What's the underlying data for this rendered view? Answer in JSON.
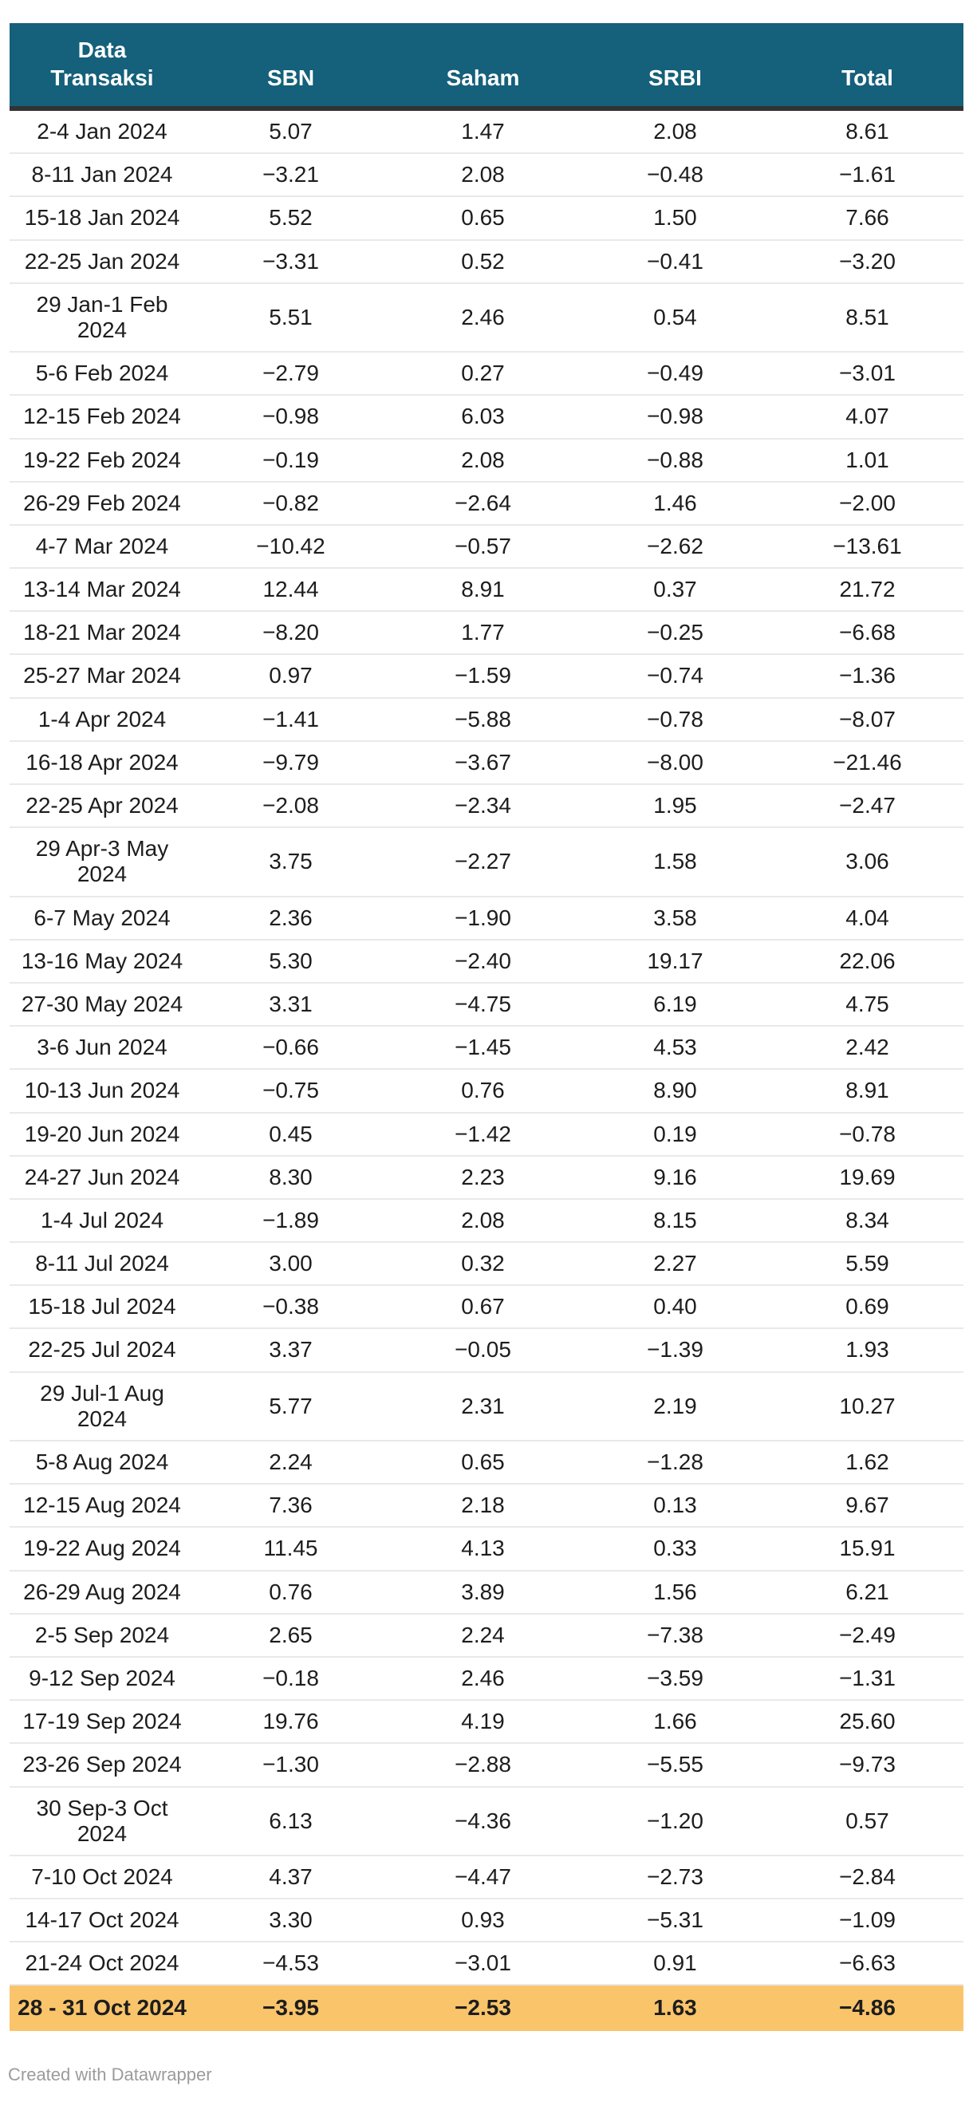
{
  "theme": {
    "header_bg": "#15607A",
    "header_text": "#FFFFFF",
    "header_border": "#333333",
    "row_divider": "#E9E9E9",
    "cell_text": "#1D1D1D",
    "highlight_bg": "#FAC46B",
    "page_bg": "#FFFFFF",
    "credit_text": "#9B9B9B"
  },
  "header": {
    "labels": [
      "Data\nTransaksi",
      "SBN",
      "Saham",
      "SRBI",
      "Total"
    ]
  },
  "footer": {
    "credit": "Created with Datawrapper"
  },
  "chart_data": {
    "type": "table",
    "columns": [
      "Data Transaksi",
      "SBN",
      "Saham",
      "SRBI",
      "Total"
    ],
    "highlight_row_index": 41,
    "rows": [
      [
        "2-4 Jan 2024",
        5.07,
        1.47,
        2.08,
        8.61
      ],
      [
        "8-11 Jan 2024",
        -3.21,
        2.08,
        -0.48,
        -1.61
      ],
      [
        "15-18 Jan 2024",
        5.52,
        0.65,
        1.5,
        7.66
      ],
      [
        "22-25 Jan 2024",
        -3.31,
        0.52,
        -0.41,
        -3.2
      ],
      [
        "29 Jan-1 Feb 2024",
        5.51,
        2.46,
        0.54,
        8.51
      ],
      [
        "5-6 Feb 2024",
        -2.79,
        0.27,
        -0.49,
        -3.01
      ],
      [
        "12-15 Feb 2024",
        -0.98,
        6.03,
        -0.98,
        4.07
      ],
      [
        "19-22 Feb 2024",
        -0.19,
        2.08,
        -0.88,
        1.01
      ],
      [
        "26-29 Feb 2024",
        -0.82,
        -2.64,
        1.46,
        -2.0
      ],
      [
        "4-7 Mar 2024",
        -10.42,
        -0.57,
        -2.62,
        -13.61
      ],
      [
        "13-14 Mar 2024",
        12.44,
        8.91,
        0.37,
        21.72
      ],
      [
        "18-21 Mar 2024",
        -8.2,
        1.77,
        -0.25,
        -6.68
      ],
      [
        "25-27 Mar 2024",
        0.97,
        -1.59,
        -0.74,
        -1.36
      ],
      [
        "1-4 Apr 2024",
        -1.41,
        -5.88,
        -0.78,
        -8.07
      ],
      [
        "16-18 Apr 2024",
        -9.79,
        -3.67,
        -8.0,
        -21.46
      ],
      [
        "22-25 Apr 2024",
        -2.08,
        -2.34,
        1.95,
        -2.47
      ],
      [
        "29 Apr-3 May 2024",
        3.75,
        -2.27,
        1.58,
        3.06
      ],
      [
        "6-7 May 2024",
        2.36,
        -1.9,
        3.58,
        4.04
      ],
      [
        "13-16 May 2024",
        5.3,
        -2.4,
        19.17,
        22.06
      ],
      [
        "27-30 May 2024",
        3.31,
        -4.75,
        6.19,
        4.75
      ],
      [
        "3-6 Jun 2024",
        -0.66,
        -1.45,
        4.53,
        2.42
      ],
      [
        "10-13 Jun 2024",
        -0.75,
        0.76,
        8.9,
        8.91
      ],
      [
        "19-20 Jun 2024",
        0.45,
        -1.42,
        0.19,
        -0.78
      ],
      [
        "24-27 Jun 2024",
        8.3,
        2.23,
        9.16,
        19.69
      ],
      [
        "1-4 Jul 2024",
        -1.89,
        2.08,
        8.15,
        8.34
      ],
      [
        "8-11 Jul 2024",
        3.0,
        0.32,
        2.27,
        5.59
      ],
      [
        "15-18 Jul 2024",
        -0.38,
        0.67,
        0.4,
        0.69
      ],
      [
        "22-25 Jul 2024",
        3.37,
        -0.05,
        -1.39,
        1.93
      ],
      [
        "29 Jul-1 Aug 2024",
        5.77,
        2.31,
        2.19,
        10.27
      ],
      [
        "5-8 Aug 2024",
        2.24,
        0.65,
        -1.28,
        1.62
      ],
      [
        "12-15 Aug 2024",
        7.36,
        2.18,
        0.13,
        9.67
      ],
      [
        "19-22 Aug 2024",
        11.45,
        4.13,
        0.33,
        15.91
      ],
      [
        "26-29 Aug 2024",
        0.76,
        3.89,
        1.56,
        6.21
      ],
      [
        "2-5 Sep 2024",
        2.65,
        2.24,
        -7.38,
        -2.49
      ],
      [
        "9-12 Sep 2024",
        -0.18,
        2.46,
        -3.59,
        -1.31
      ],
      [
        "17-19 Sep 2024",
        19.76,
        4.19,
        1.66,
        25.6
      ],
      [
        "23-26 Sep 2024",
        -1.3,
        -2.88,
        -5.55,
        -9.73
      ],
      [
        "30 Sep-3 Oct 2024",
        6.13,
        -4.36,
        -1.2,
        0.57
      ],
      [
        "7-10 Oct 2024",
        4.37,
        -4.47,
        -2.73,
        -2.84
      ],
      [
        "14-17 Oct 2024",
        3.3,
        0.93,
        -5.31,
        -1.09
      ],
      [
        "21-24 Oct 2024",
        -4.53,
        -3.01,
        0.91,
        -6.63
      ],
      [
        "28 - 31 Oct 2024",
        -3.95,
        -2.53,
        1.63,
        -4.86
      ]
    ]
  }
}
